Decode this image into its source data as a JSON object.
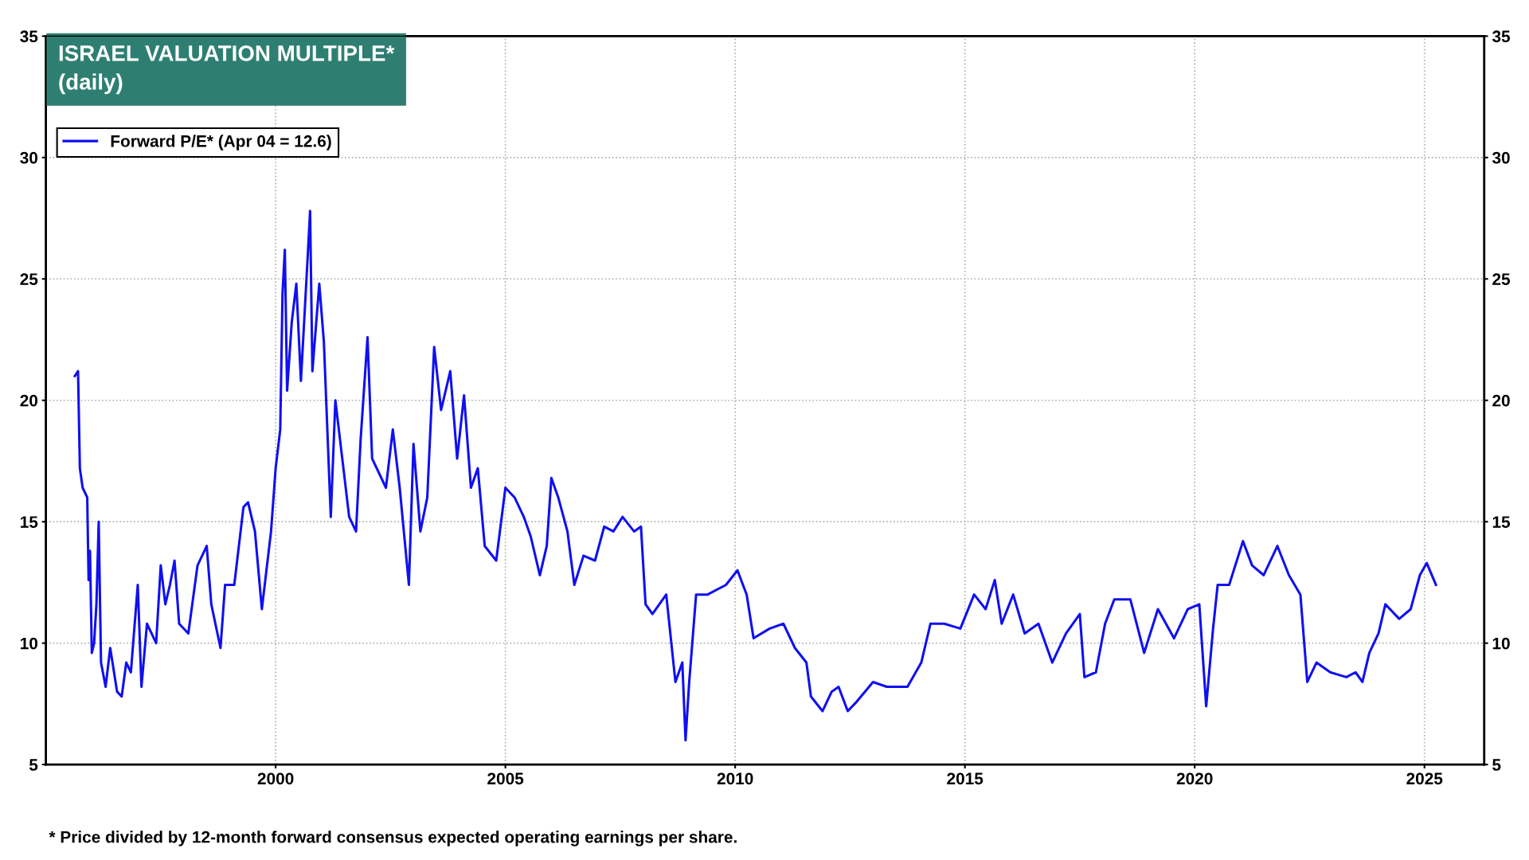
{
  "chart_data": {
    "type": "line",
    "title": "ISRAEL VALUATION MULTIPLE*",
    "subtitle": "(daily)",
    "annotations": [
      "* Price divided by 12-month forward consensus expected operating earnings per share."
    ],
    "x": [
      1995.63,
      1995.7,
      1995.74,
      1995.8,
      1995.9,
      1995.93,
      1995.96,
      1996.0,
      1996.05,
      1996.1,
      1996.15,
      1996.2,
      1996.3,
      1996.4,
      1996.55,
      1996.65,
      1996.75,
      1996.85,
      1997.0,
      1997.08,
      1997.2,
      1997.4,
      1997.5,
      1997.6,
      1997.7,
      1997.8,
      1997.9,
      1998.1,
      1998.3,
      1998.5,
      1998.6,
      1998.8,
      1998.9,
      1999.1,
      1999.3,
      1999.4,
      1999.55,
      1999.7,
      1999.9,
      2000.0,
      2000.1,
      2000.15,
      2000.2,
      2000.25,
      2000.35,
      2000.45,
      2000.55,
      2000.7,
      2000.75,
      2000.8,
      2000.95,
      2001.05,
      2001.2,
      2001.3,
      2001.45,
      2001.6,
      2001.75,
      2001.85,
      2002.0,
      2002.1,
      2002.4,
      2002.55,
      2002.7,
      2002.9,
      2003.0,
      2003.15,
      2003.3,
      2003.45,
      2003.6,
      2003.8,
      2003.95,
      2004.1,
      2004.25,
      2004.4,
      2004.55,
      2004.8,
      2005.0,
      2005.2,
      2005.4,
      2005.55,
      2005.75,
      2005.9,
      2006.0,
      2006.15,
      2006.35,
      2006.5,
      2006.7,
      2006.95,
      2007.15,
      2007.35,
      2007.55,
      2007.8,
      2007.95,
      2008.05,
      2008.2,
      2008.5,
      2008.7,
      2008.85,
      2008.92,
      2009.0,
      2009.15,
      2009.4,
      2009.8,
      2010.05,
      2010.25,
      2010.4,
      2010.75,
      2011.05,
      2011.3,
      2011.55,
      2011.65,
      2011.9,
      2012.1,
      2012.25,
      2012.45,
      2012.65,
      2013.0,
      2013.3,
      2013.75,
      2014.05,
      2014.25,
      2014.55,
      2014.9,
      2015.2,
      2015.45,
      2015.65,
      2015.8,
      2016.05,
      2016.3,
      2016.6,
      2016.9,
      2017.2,
      2017.5,
      2017.6,
      2017.85,
      2018.05,
      2018.25,
      2018.6,
      2018.9,
      2019.2,
      2019.55,
      2019.85,
      2020.1,
      2020.25,
      2020.4,
      2020.5,
      2020.75,
      2021.05,
      2021.25,
      2021.5,
      2021.8,
      2022.05,
      2022.3,
      2022.45,
      2022.65,
      2022.95,
      2023.3,
      2023.5,
      2023.65,
      2023.8,
      2024.0,
      2024.15,
      2024.45,
      2024.7,
      2024.9,
      2025.05,
      2025.25
    ],
    "series": [
      {
        "name": "Forward P/E* (Apr 04 = 12.6)",
        "color": "#1010f0",
        "values": [
          21.0,
          21.2,
          17.2,
          16.4,
          16.0,
          12.6,
          13.8,
          9.6,
          10.0,
          11.6,
          15.0,
          9.2,
          8.2,
          9.8,
          8.0,
          7.8,
          9.2,
          8.8,
          12.4,
          8.2,
          10.8,
          10.0,
          13.2,
          11.6,
          12.4,
          13.4,
          10.8,
          10.4,
          13.2,
          14.0,
          11.6,
          9.8,
          12.4,
          12.4,
          15.6,
          15.8,
          14.6,
          11.4,
          14.6,
          17.2,
          18.8,
          24.4,
          26.2,
          20.4,
          23.2,
          24.8,
          20.8,
          26.0,
          27.8,
          21.2,
          24.8,
          22.4,
          15.2,
          20.0,
          17.6,
          15.2,
          14.6,
          18.4,
          22.6,
          17.6,
          16.4,
          18.8,
          16.4,
          12.4,
          18.2,
          14.6,
          16.0,
          22.2,
          19.6,
          21.2,
          17.6,
          20.2,
          16.4,
          17.2,
          14.0,
          13.4,
          16.4,
          16.0,
          15.2,
          14.4,
          12.8,
          14.0,
          16.8,
          16.0,
          14.6,
          12.4,
          13.6,
          13.4,
          14.8,
          14.6,
          15.2,
          14.6,
          14.8,
          11.6,
          11.2,
          12.0,
          8.4,
          9.2,
          6.0,
          8.4,
          12.0,
          12.0,
          12.4,
          13.0,
          12.0,
          10.2,
          10.6,
          10.8,
          9.8,
          9.2,
          7.8,
          7.2,
          8.0,
          8.2,
          7.2,
          7.6,
          8.4,
          8.2,
          8.2,
          9.2,
          10.8,
          10.8,
          10.6,
          12.0,
          11.4,
          12.6,
          10.8,
          12.0,
          10.4,
          10.8,
          9.2,
          10.4,
          11.2,
          8.6,
          8.8,
          10.8,
          11.8,
          11.8,
          9.6,
          11.4,
          10.2,
          11.4,
          11.6,
          7.4,
          10.6,
          12.4,
          12.4,
          14.2,
          13.2,
          12.8,
          14.0,
          12.8,
          12.0,
          8.4,
          9.2,
          8.8,
          8.6,
          8.8,
          8.4,
          9.6,
          10.4,
          11.6,
          11.0,
          11.4,
          12.8,
          13.3,
          12.4
        ]
      }
    ],
    "xlim": [
      1995.0,
      2026.3
    ],
    "xticks": [
      2000,
      2005,
      2010,
      2015,
      2020,
      2025
    ],
    "ylim": [
      5,
      35
    ],
    "yticks": [
      5,
      10,
      15,
      20,
      25,
      30,
      35
    ],
    "y2lim": [
      5,
      35
    ],
    "y2ticks": [
      5,
      10,
      15,
      20,
      25,
      30,
      35
    ],
    "grid": true,
    "legend": "top left",
    "line_style": "solid",
    "marker": "none"
  }
}
